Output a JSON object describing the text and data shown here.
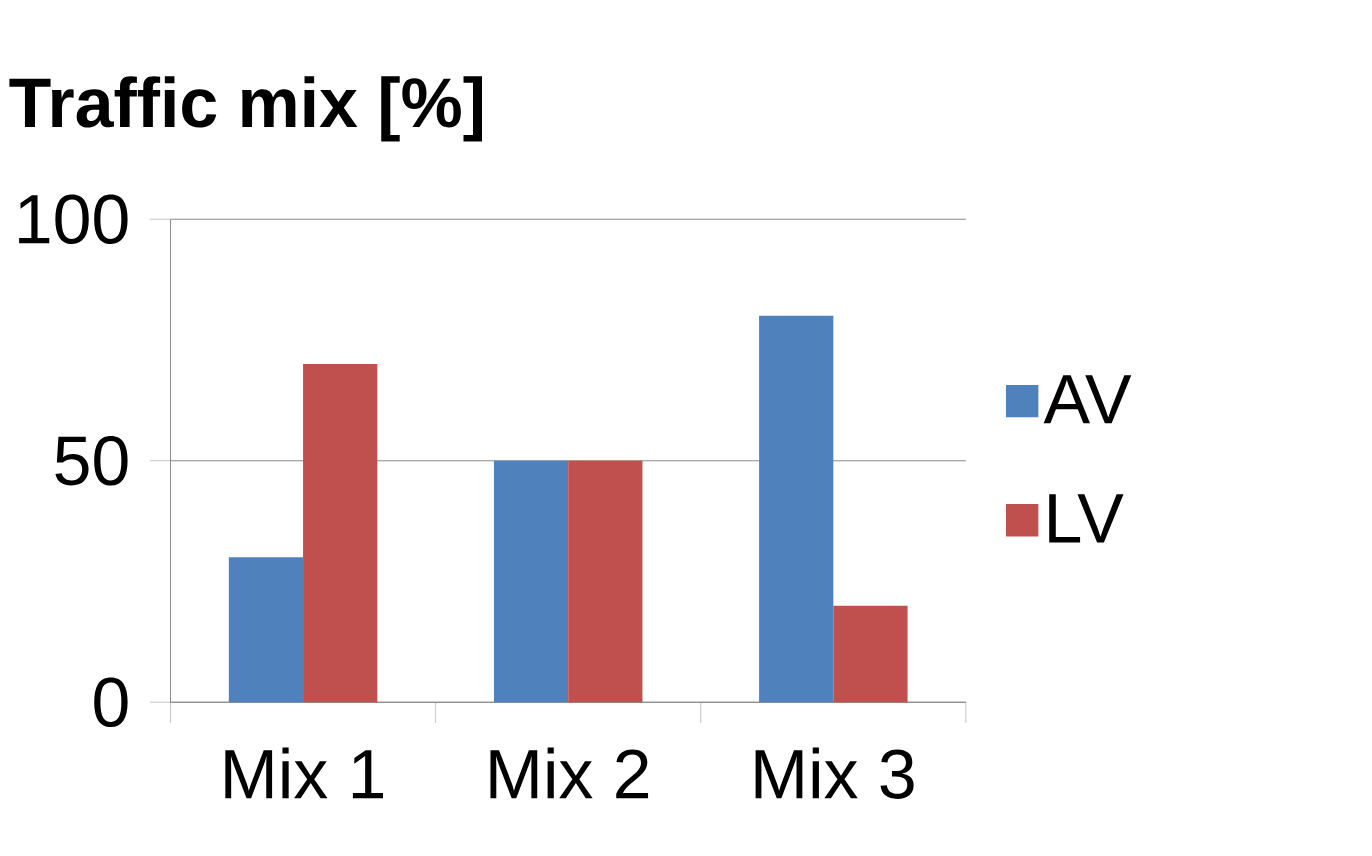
{
  "chart_data": {
    "type": "bar",
    "title": "Traffic mix [%]",
    "categories": [
      "Mix 1",
      "Mix 2",
      "Mix 3"
    ],
    "series": [
      {
        "name": "AV",
        "color": "#4f81bd",
        "values": [
          30,
          50,
          80
        ]
      },
      {
        "name": "LV",
        "color": "#c0504d",
        "values": [
          70,
          50,
          20
        ]
      }
    ],
    "ylim": [
      0,
      100
    ],
    "yticks": [
      0,
      50,
      100
    ],
    "grid": "y",
    "legend": "right"
  }
}
